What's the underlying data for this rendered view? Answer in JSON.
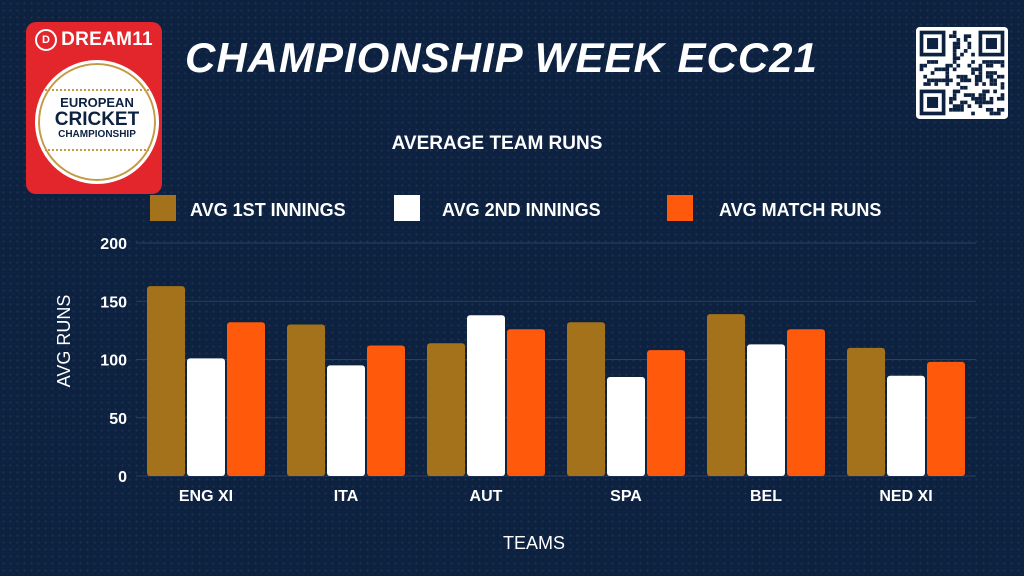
{
  "logo": {
    "brand": "DREAM11",
    "line1": "EUROPEAN",
    "line2": "CRICKET",
    "line3": "CHAMPIONSHIP"
  },
  "title": "CHAMPIONSHIP WEEK ECC21",
  "colors": {
    "background": "#0d2140",
    "gridline": "#2a3f63",
    "series1": "#a3721a",
    "series2": "#ffffff",
    "series3": "#ff5a0b",
    "logo_red": "#e2262c"
  },
  "icons": [
    "dream11-logo-icon",
    "cricket-ball-icon",
    "qr-code-icon"
  ],
  "chart_data": {
    "type": "bar",
    "title": "AVERAGE TEAM RUNS",
    "xlabel": "TEAMS",
    "ylabel": "AVG RUNS",
    "categories": [
      "ENG XI",
      "ITA",
      "AUT",
      "SPA",
      "BEL",
      "NED XI"
    ],
    "series": [
      {
        "name": "AVG 1ST INNINGS",
        "color": "#a3721a",
        "values": [
          163,
          130,
          114,
          132,
          139,
          110
        ]
      },
      {
        "name": "AVG 2ND INNINGS",
        "color": "#ffffff",
        "values": [
          101,
          95,
          138,
          85,
          113,
          86
        ]
      },
      {
        "name": "AVG MATCH RUNS",
        "color": "#ff5a0b",
        "values": [
          132,
          112,
          126,
          108,
          126,
          98
        ]
      }
    ],
    "ylim": [
      0,
      200
    ],
    "yticks": [
      0,
      50,
      100,
      150,
      200
    ],
    "grid": true,
    "legend": "top"
  }
}
